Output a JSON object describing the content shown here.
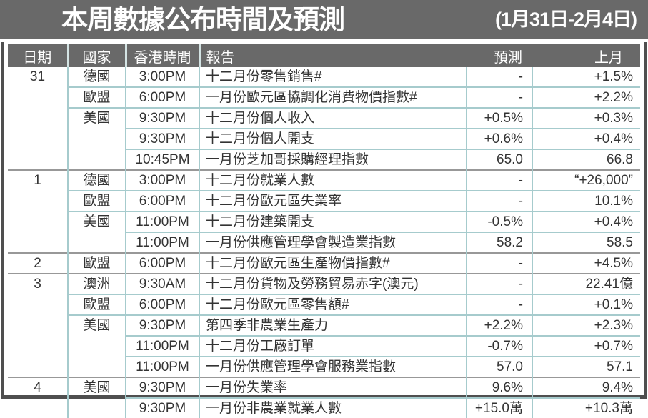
{
  "banner": {
    "title": "本周數據公布時間及預測",
    "date_range": "(1月31日-2月4日)"
  },
  "colors": {
    "banner_bg": "#696969",
    "header_bg": "#696969",
    "grid_teal": "#a6cbcd",
    "group_separator": "#989898",
    "frame_border": "#4f4f4f",
    "text": "#333333",
    "header_text": "#ffffff"
  },
  "table": {
    "headers": [
      "日期",
      "國家",
      "香港時間",
      "報告",
      "預測",
      "上月"
    ],
    "groups": [
      {
        "date": "31",
        "rows": [
          {
            "country": "德國",
            "time": "3:00PM",
            "report": "十二月份零售銷售#",
            "forecast": "-",
            "prev": "+1.5%"
          },
          {
            "country": "歐盟",
            "time": "6:00PM",
            "report": "一月份歐元區協調化消費物價指數#",
            "forecast": "-",
            "prev": "+2.2%"
          },
          {
            "country": "美國",
            "time": "9:30PM",
            "report": "十二月份個人收入",
            "forecast": "+0.5%",
            "prev": "+0.3%"
          },
          {
            "country": "",
            "time": "9:30PM",
            "report": "十二月份個人開支",
            "forecast": "+0.6%",
            "prev": "+0.4%"
          },
          {
            "country": "",
            "time": "10:45PM",
            "report": "一月份芝加哥採購經理指數",
            "forecast": "65.0",
            "prev": "66.8"
          }
        ]
      },
      {
        "date": "1",
        "rows": [
          {
            "country": "德國",
            "time": "3:00PM",
            "report": "十二月份就業人數",
            "forecast": "-",
            "prev": "“+26,000”"
          },
          {
            "country": "歐盟",
            "time": "6:00PM",
            "report": "十二月份歐元區失業率",
            "forecast": "-",
            "prev": "10.1%"
          },
          {
            "country": "美國",
            "time": "11:00PM",
            "report": "十二月份建築開支",
            "forecast": "-0.5%",
            "prev": "+0.4%"
          },
          {
            "country": "",
            "time": "11:00PM",
            "report": "一月份供應管理學會製造業指數",
            "forecast": "58.2",
            "prev": "58.5"
          }
        ]
      },
      {
        "date": "2",
        "rows": [
          {
            "country": "歐盟",
            "time": "6:00PM",
            "report": "十二月份歐元區生產物價指數#",
            "forecast": "-",
            "prev": "+4.5%"
          }
        ]
      },
      {
        "date": "3",
        "rows": [
          {
            "country": "澳洲",
            "time": "9:30AM",
            "report": "十二月份貨物及勞務貿易赤字(澳元)",
            "forecast": "-",
            "prev": "22.41億"
          },
          {
            "country": "歐盟",
            "time": "6:00PM",
            "report": "十二月份歐元區零售額#",
            "forecast": "-",
            "prev": "+0.1%"
          },
          {
            "country": "美國",
            "time": "9:30PM",
            "report": "第四季非農業生產力",
            "forecast": "+2.2%",
            "prev": "+2.3%"
          },
          {
            "country": "",
            "time": "11:00PM",
            "report": "十二月份工廠訂單",
            "forecast": "-0.7%",
            "prev": "+0.7%"
          },
          {
            "country": "",
            "time": "11:00PM",
            "report": "一月份供應管理學會服務業指數",
            "forecast": "57.0",
            "prev": "57.1"
          }
        ]
      },
      {
        "date": "4",
        "rows": [
          {
            "country": "美國",
            "time": "9:30PM",
            "report": "一月份失業率",
            "forecast": "9.6%",
            "prev": "9.4%"
          },
          {
            "country": "",
            "time": "9:30PM",
            "report": "一月份非農業就業人數",
            "forecast": "+15.0萬",
            "prev": "+10.3萬"
          }
        ]
      }
    ]
  }
}
